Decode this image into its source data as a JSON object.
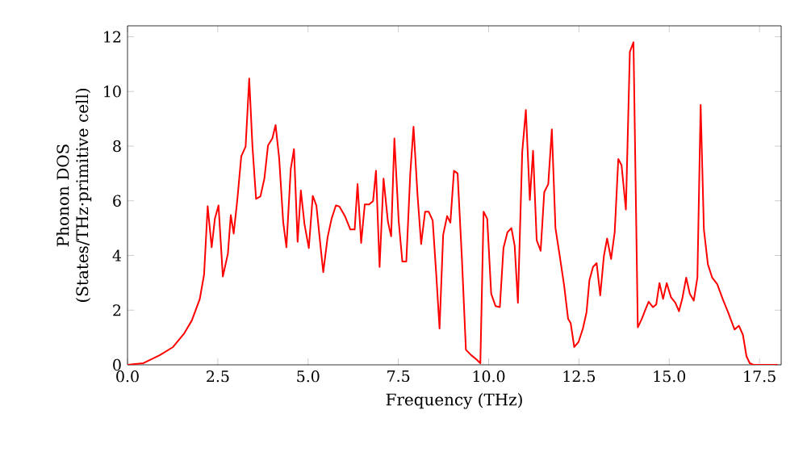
{
  "chart_data": {
    "type": "line",
    "xlabel": "Frequency (THz)",
    "ylabel": "Phonon DOS (States/THz·primitive cell)",
    "xlim": [
      0,
      18.1
    ],
    "ylim": [
      0,
      12.4
    ],
    "xticks": [
      {
        "value": 0,
        "label": "0.0"
      },
      {
        "value": 2.5,
        "label": "2.5"
      },
      {
        "value": 5,
        "label": "5.0"
      },
      {
        "value": 7.5,
        "label": "7.5"
      },
      {
        "value": 10,
        "label": "10.0"
      },
      {
        "value": 12.5,
        "label": "12.5"
      },
      {
        "value": 15,
        "label": "15.0"
      },
      {
        "value": 17.5,
        "label": "17.5"
      }
    ],
    "yticks": [
      0,
      2,
      4,
      6,
      8,
      10,
      12
    ],
    "grid": false,
    "legend": false,
    "marker": "none",
    "line_style": "solid",
    "series": [
      {
        "color": "#ff0000",
        "x": [
          0,
          0.44,
          0.89,
          1.26,
          1.56,
          1.78,
          2.0,
          2.12,
          2.22,
          2.33,
          2.42,
          2.52,
          2.64,
          2.78,
          2.86,
          2.94,
          3.04,
          3.15,
          3.27,
          3.37,
          3.46,
          3.56,
          3.68,
          3.79,
          3.89,
          4.01,
          4.1,
          4.2,
          4.31,
          4.4,
          4.52,
          4.61,
          4.71,
          4.8,
          4.9,
          5.02,
          5.13,
          5.23,
          5.35,
          5.42,
          5.54,
          5.65,
          5.77,
          5.87,
          6.02,
          6.17,
          6.29,
          6.37,
          6.47,
          6.57,
          6.69,
          6.8,
          6.88,
          6.98,
          7.09,
          7.21,
          7.3,
          7.39,
          7.51,
          7.61,
          7.72,
          7.83,
          7.92,
          8.03,
          8.13,
          8.24,
          8.34,
          8.45,
          8.55,
          8.64,
          8.74,
          8.85,
          8.94,
          9.04,
          9.14,
          9.26,
          9.37,
          9.52,
          9.66,
          9.77,
          9.86,
          9.96,
          10.07,
          10.19,
          10.31,
          10.41,
          10.52,
          10.63,
          10.72,
          10.81,
          10.93,
          11.03,
          11.14,
          11.23,
          11.33,
          11.44,
          11.54,
          11.65,
          11.75,
          11.85,
          11.97,
          12.09,
          12.2,
          12.27,
          12.37,
          12.49,
          12.61,
          12.71,
          12.79,
          12.89,
          12.99,
          13.09,
          13.19,
          13.28,
          13.39,
          13.49,
          13.59,
          13.68,
          13.8,
          13.91,
          14.01,
          14.13,
          14.24,
          14.34,
          14.43,
          14.55,
          14.64,
          14.73,
          14.83,
          14.93,
          15.05,
          15.17,
          15.27,
          15.36,
          15.47,
          15.57,
          15.68,
          15.78,
          15.87,
          15.96,
          16.07,
          16.19,
          16.33,
          16.48,
          16.63,
          16.81,
          16.93,
          17.04,
          17.14,
          17.23,
          17.33,
          18.0
        ],
        "values": [
          0,
          0.06,
          0.35,
          0.65,
          1.13,
          1.62,
          2.4,
          3.3,
          5.8,
          4.3,
          5.35,
          5.83,
          3.23,
          4.07,
          5.48,
          4.8,
          6.03,
          7.63,
          7.98,
          10.47,
          7.98,
          6.07,
          6.16,
          6.81,
          8.02,
          8.28,
          8.77,
          7.55,
          5.24,
          4.3,
          7.16,
          7.89,
          4.5,
          6.38,
          5.15,
          4.27,
          6.18,
          5.83,
          4.27,
          3.39,
          4.66,
          5.34,
          5.83,
          5.79,
          5.44,
          4.95,
          4.95,
          6.61,
          4.46,
          5.87,
          5.87,
          5.99,
          7.1,
          3.58,
          6.81,
          5.24,
          4.7,
          8.28,
          5.24,
          3.78,
          3.78,
          7.0,
          8.71,
          6.22,
          4.42,
          5.6,
          5.6,
          5.28,
          3.29,
          1.33,
          4.75,
          5.44,
          5.2,
          7.1,
          7.0,
          3.87,
          0.55,
          0.35,
          0.2,
          0.06,
          5.6,
          5.34,
          2.6,
          2.15,
          2.11,
          4.27,
          4.85,
          5.0,
          4.36,
          2.27,
          7.79,
          9.32,
          6.03,
          7.83,
          4.56,
          4.17,
          6.32,
          6.61,
          8.61,
          5.0,
          3.97,
          2.9,
          1.68,
          1.53,
          0.65,
          0.84,
          1.33,
          1.92,
          3.09,
          3.58,
          3.72,
          2.54,
          3.97,
          4.62,
          3.87,
          4.85,
          7.53,
          7.3,
          5.68,
          11.45,
          11.8,
          1.37,
          1.68,
          2.02,
          2.31,
          2.11,
          2.21,
          2.99,
          2.41,
          2.99,
          2.47,
          2.27,
          1.96,
          2.41,
          3.19,
          2.6,
          2.35,
          3.19,
          9.51,
          4.95,
          3.68,
          3.19,
          2.95,
          2.41,
          1.92,
          1.29,
          1.43,
          1.1,
          0.31,
          0.06,
          0,
          0
        ]
      }
    ]
  }
}
